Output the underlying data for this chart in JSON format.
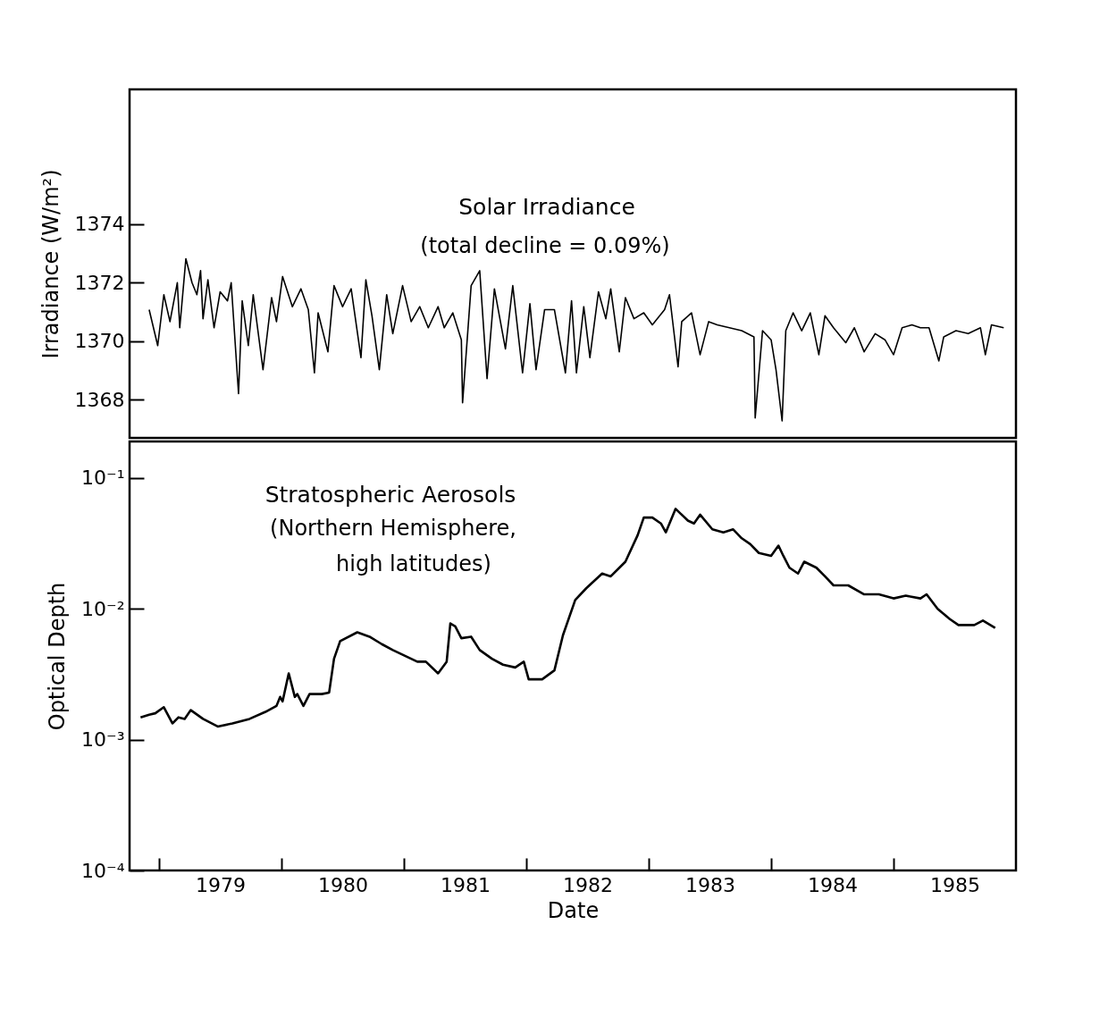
{
  "chart_data": [
    {
      "type": "line",
      "ylabel": "Irradiance (W/m²)",
      "xlim": [
        1978.76,
        1986.0
      ],
      "ylim": [
        1366.7,
        1378.6
      ],
      "yticks": [
        1368,
        1370,
        1372,
        1374
      ],
      "tick_labels": "y",
      "annotations": [
        "(total decline = 0.09%)"
      ],
      "series": [
        {
          "name": "Solar Irradiance",
          "color": "#000000",
          "x": [
            1978.92,
            1978.99,
            1979.04,
            1979.09,
            1979.15,
            1979.17,
            1979.22,
            1979.27,
            1979.31,
            1979.34,
            1979.36,
            1979.4,
            1979.45,
            1979.5,
            1979.56,
            1979.59,
            1979.65,
            1979.68,
            1979.73,
            1979.77,
            1979.85,
            1979.92,
            1979.96,
            1980.01,
            1980.09,
            1980.16,
            1980.22,
            1980.27,
            1980.3,
            1980.38,
            1980.43,
            1980.5,
            1980.57,
            1980.65,
            1980.69,
            1980.74,
            1980.8,
            1980.86,
            1980.91,
            1980.99,
            1981.06,
            1981.13,
            1981.2,
            1981.28,
            1981.33,
            1981.4,
            1981.47,
            1981.48,
            1981.55,
            1981.62,
            1981.68,
            1981.74,
            1981.83,
            1981.89,
            1981.97,
            1982.03,
            1982.08,
            1982.15,
            1982.23,
            1982.32,
            1982.37,
            1982.41,
            1982.47,
            1982.52,
            1982.59,
            1982.65,
            1982.69,
            1982.76,
            1982.81,
            1982.88,
            1982.96,
            1983.03,
            1983.13,
            1983.17,
            1983.24,
            1983.27,
            1983.35,
            1983.42,
            1983.49,
            1983.56,
            1983.66,
            1983.76,
            1983.86,
            1983.87,
            1983.93,
            1984.0,
            1984.04,
            1984.09,
            1984.12,
            1984.18,
            1984.25,
            1984.32,
            1984.39,
            1984.44,
            1984.51,
            1984.61,
            1984.68,
            1984.76,
            1984.85,
            1984.93,
            1985.0,
            1985.07,
            1985.15,
            1985.22,
            1985.29,
            1985.37,
            1985.41,
            1985.51,
            1985.61,
            1985.71,
            1985.75,
            1985.8,
            1985.9
          ],
          "values": [
            1371.08,
            1369.85,
            1371.59,
            1370.67,
            1372.0,
            1370.46,
            1372.82,
            1372.0,
            1371.59,
            1372.41,
            1370.77,
            1372.1,
            1370.46,
            1371.69,
            1371.38,
            1372.0,
            1368.21,
            1371.38,
            1369.85,
            1371.59,
            1369.03,
            1371.49,
            1370.67,
            1372.21,
            1371.18,
            1371.79,
            1371.08,
            1368.92,
            1370.97,
            1369.64,
            1371.9,
            1371.18,
            1371.79,
            1369.44,
            1372.1,
            1370.87,
            1369.03,
            1371.59,
            1370.26,
            1371.9,
            1370.67,
            1371.18,
            1370.46,
            1371.18,
            1370.46,
            1370.97,
            1370.05,
            1367.9,
            1371.9,
            1372.41,
            1368.72,
            1371.79,
            1369.74,
            1371.9,
            1368.92,
            1371.28,
            1369.03,
            1371.08,
            1371.08,
            1368.92,
            1371.38,
            1368.92,
            1371.18,
            1369.44,
            1371.69,
            1370.77,
            1371.79,
            1369.64,
            1371.49,
            1370.77,
            1370.97,
            1370.56,
            1371.08,
            1371.59,
            1369.13,
            1370.67,
            1370.97,
            1369.54,
            1370.67,
            1370.56,
            1370.46,
            1370.36,
            1370.15,
            1367.38,
            1370.36,
            1370.05,
            1369.03,
            1367.28,
            1370.36,
            1370.97,
            1370.36,
            1370.97,
            1369.54,
            1370.87,
            1370.46,
            1369.95,
            1370.46,
            1369.64,
            1370.26,
            1370.05,
            1369.54,
            1370.46,
            1370.56,
            1370.46,
            1370.46,
            1369.33,
            1370.15,
            1370.36,
            1370.26,
            1370.46,
            1369.54,
            1370.56,
            1370.46
          ]
        }
      ]
    },
    {
      "type": "line",
      "xlabel": "Date",
      "ylabel": "Optical Depth",
      "log": true,
      "xlim": [
        1978.76,
        1986.0
      ],
      "xticks": [
        {
          "value": 1979,
          "label": null
        },
        {
          "value": 1979.5,
          "label": "1979"
        },
        {
          "value": 1980,
          "label": null
        },
        {
          "value": 1980.5,
          "label": "1980"
        },
        {
          "value": 1981,
          "label": null
        },
        {
          "value": 1981.5,
          "label": "1981"
        },
        {
          "value": 1982,
          "label": null
        },
        {
          "value": 1982.5,
          "label": "1982"
        },
        {
          "value": 1983,
          "label": null
        },
        {
          "value": 1983.5,
          "label": "1983"
        },
        {
          "value": 1984,
          "label": null
        },
        {
          "value": 1984.5,
          "label": "1984"
        },
        {
          "value": 1985,
          "label": null
        },
        {
          "value": 1985.5,
          "label": "1985"
        }
      ],
      "ylim": [
        0.0001,
        0.19
      ],
      "yticks": [
        {
          "value": 0.0001,
          "label": "10⁻⁴"
        },
        {
          "value": 0.001,
          "label": "10⁻³"
        },
        {
          "value": 0.01,
          "label": "10⁻²"
        },
        {
          "value": 0.1,
          "label": "10⁻¹"
        }
      ],
      "annotations": [
        "(Northern Hemisphere,",
        "high latitudes)"
      ],
      "series": [
        {
          "name": "Stratospheric Aerosols",
          "color": "#000000",
          "x": [
            1978.85,
            1978.92,
            1978.97,
            1979.04,
            1979.11,
            1979.16,
            1979.21,
            1979.26,
            1979.36,
            1979.48,
            1979.6,
            1979.74,
            1979.87,
            1979.96,
            1979.99,
            1980.01,
            1980.06,
            1980.11,
            1980.13,
            1980.18,
            1980.23,
            1980.33,
            1980.39,
            1980.43,
            1980.48,
            1980.62,
            1980.72,
            1980.82,
            1980.91,
            1981.01,
            1981.11,
            1981.18,
            1981.28,
            1981.35,
            1981.38,
            1981.42,
            1981.47,
            1981.55,
            1981.62,
            1981.72,
            1981.81,
            1981.91,
            1981.98,
            1982.02,
            1982.13,
            1982.23,
            1982.3,
            1982.4,
            1982.49,
            1982.62,
            1982.69,
            1982.81,
            1982.91,
            1982.96,
            1983.03,
            1983.1,
            1983.14,
            1983.22,
            1983.32,
            1983.37,
            1983.42,
            1983.52,
            1983.61,
            1983.69,
            1983.76,
            1983.83,
            1983.9,
            1984.0,
            1984.06,
            1984.1,
            1984.15,
            1984.22,
            1984.27,
            1984.37,
            1984.44,
            1984.51,
            1984.63,
            1984.76,
            1984.88,
            1985.0,
            1985.1,
            1985.22,
            1985.27,
            1985.36,
            1985.46,
            1985.53,
            1985.66,
            1985.73,
            1985.83
          ],
          "values": [
            0.00148,
            0.00155,
            0.00159,
            0.00177,
            0.00133,
            0.00148,
            0.00144,
            0.00168,
            0.00144,
            0.00126,
            0.00133,
            0.00144,
            0.00163,
            0.00181,
            0.00212,
            0.00196,
            0.00321,
            0.00212,
            0.00223,
            0.00181,
            0.00223,
            0.00223,
            0.00229,
            0.00415,
            0.00566,
            0.00661,
            0.00612,
            0.00537,
            0.00484,
            0.00437,
            0.00394,
            0.00394,
            0.00321,
            0.00394,
            0.00773,
            0.00733,
            0.00596,
            0.00612,
            0.00484,
            0.00415,
            0.00374,
            0.00356,
            0.00394,
            0.00289,
            0.00289,
            0.00338,
            0.00628,
            0.01167,
            0.01435,
            0.0186,
            0.0177,
            0.0229,
            0.0365,
            0.0498,
            0.0498,
            0.0449,
            0.0384,
            0.0581,
            0.0472,
            0.0449,
            0.0524,
            0.0405,
            0.0384,
            0.0405,
            0.0346,
            0.0312,
            0.0267,
            0.0254,
            0.0304,
            0.0254,
            0.0206,
            0.0186,
            0.0229,
            0.0206,
            0.0177,
            0.0151,
            0.0151,
            0.0129,
            0.0129,
            0.012,
            0.0126,
            0.012,
            0.0129,
            0.01,
            0.00834,
            0.00752,
            0.00752,
            0.00813,
            0.00714
          ]
        }
      ]
    }
  ]
}
